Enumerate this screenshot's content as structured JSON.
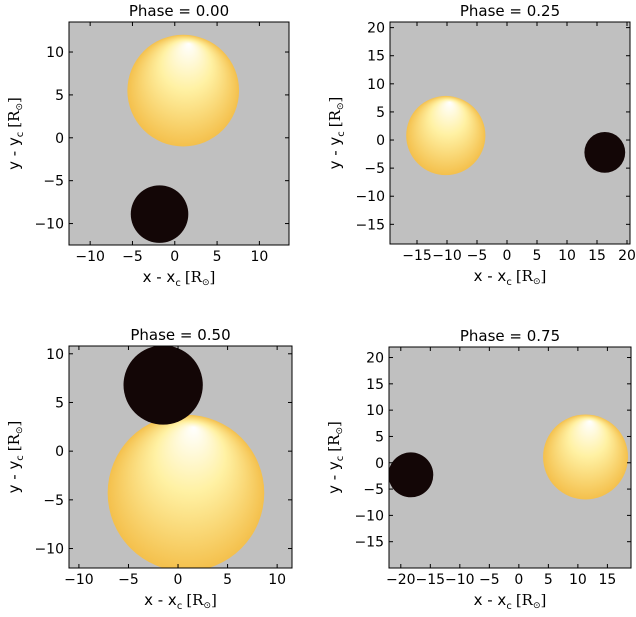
{
  "figure": {
    "colors": {
      "plot_background": "#c0c0c0",
      "axis_frame": "#000000",
      "dark_star": "#130606",
      "bright_star_center": "#ffffff",
      "bright_star_mid": "#fff1a3",
      "bright_star_edge": "#f4c04c"
    }
  },
  "chart_data": [
    {
      "type": "scatter",
      "title": "Phase = 0.00",
      "xlabel": "x - x",
      "xlabel_sub": "c",
      "xlabel_unit": "[R",
      "xlabel_unit_close": "]",
      "ylabel": "y - y",
      "ylabel_sub": "c",
      "ylabel_unit": "[R",
      "ylabel_unit_close": "]",
      "xlim": [
        -12.5,
        13.5
      ],
      "ylim": [
        -12.5,
        13.5
      ],
      "xticks": [
        -10,
        -5,
        0,
        5,
        10
      ],
      "xtick_labels": [
        "−10",
        "−5",
        "0",
        "5",
        "10"
      ],
      "yticks": [
        -10,
        -5,
        0,
        5,
        10
      ],
      "ytick_labels": [
        "−10",
        "−5",
        "0",
        "5",
        "10"
      ],
      "stars": [
        {
          "kind": "bright",
          "x": 1.0,
          "y": 5.5,
          "radius": 6.6
        },
        {
          "kind": "dark",
          "x": -1.8,
          "y": -8.9,
          "radius": 3.4
        }
      ]
    },
    {
      "type": "scatter",
      "title": "Phase = 0.25",
      "xlabel": "x - x",
      "xlabel_sub": "c",
      "xlabel_unit": "[R",
      "xlabel_unit_close": "]",
      "ylabel": "y - y",
      "ylabel_sub": "c",
      "ylabel_unit": "[R",
      "ylabel_unit_close": "]",
      "xlim": [
        -19.5,
        20.5
      ],
      "ylim": [
        -18.5,
        21.0
      ],
      "xticks": [
        -15,
        -10,
        -5,
        0,
        5,
        10,
        15,
        20
      ],
      "xtick_labels": [
        "−15",
        "−10",
        "−5",
        "0",
        "5",
        "10",
        "15",
        "20"
      ],
      "yticks": [
        -15,
        -10,
        -5,
        0,
        5,
        10,
        15,
        20
      ],
      "ytick_labels": [
        "−15",
        "−10",
        "−5",
        "0",
        "5",
        "10",
        "15",
        "20"
      ],
      "stars": [
        {
          "kind": "bright",
          "x": -10.2,
          "y": 0.8,
          "radius": 6.6
        },
        {
          "kind": "dark",
          "x": 16.3,
          "y": -2.2,
          "radius": 3.4
        }
      ]
    },
    {
      "type": "scatter",
      "title": "Phase = 0.50",
      "xlabel": "x - x",
      "xlabel_sub": "c",
      "xlabel_unit": "[R",
      "xlabel_unit_close": "]",
      "ylabel": "y - y",
      "ylabel_sub": "c",
      "ylabel_unit": "[R",
      "ylabel_unit_close": "]",
      "xlim": [
        -11.0,
        11.5
      ],
      "ylim": [
        -12.0,
        10.8
      ],
      "xticks": [
        -10,
        -5,
        0,
        5,
        10
      ],
      "xtick_labels": [
        "−10",
        "−5",
        "0",
        "5",
        "10"
      ],
      "yticks": [
        -10,
        -5,
        0,
        5,
        10
      ],
      "ytick_labels": [
        "−10",
        "−5",
        "0",
        "5",
        "10"
      ],
      "stars": [
        {
          "kind": "bright",
          "x": 0.8,
          "y": -4.3,
          "radius": 7.9
        },
        {
          "kind": "dark",
          "x": -1.5,
          "y": 6.8,
          "radius": 4.0
        }
      ]
    },
    {
      "type": "scatter",
      "title": "Phase = 0.75",
      "xlabel": "x - x",
      "xlabel_sub": "c",
      "xlabel_unit": "[R",
      "xlabel_unit_close": "]",
      "ylabel": "y - y",
      "ylabel_sub": "c",
      "ylabel_unit": "[R",
      "ylabel_unit_close": "]",
      "xlim": [
        -22.0,
        19.0
      ],
      "ylim": [
        -20.0,
        22.0
      ],
      "xticks": [
        -20,
        -15,
        -10,
        -5,
        0,
        5,
        10,
        15
      ],
      "xtick_labels": [
        "−20",
        "−15",
        "−10",
        "−5",
        "0",
        "5",
        "10",
        "15"
      ],
      "yticks": [
        -15,
        -10,
        -5,
        0,
        5,
        10,
        15,
        20
      ],
      "ytick_labels": [
        "−15",
        "−10",
        "−5",
        "0",
        "5",
        "10",
        "15",
        "20"
      ],
      "stars": [
        {
          "kind": "bright",
          "x": 11.3,
          "y": 1.1,
          "radius": 7.2
        },
        {
          "kind": "dark",
          "x": -18.3,
          "y": -2.3,
          "radius": 3.8
        }
      ]
    }
  ]
}
